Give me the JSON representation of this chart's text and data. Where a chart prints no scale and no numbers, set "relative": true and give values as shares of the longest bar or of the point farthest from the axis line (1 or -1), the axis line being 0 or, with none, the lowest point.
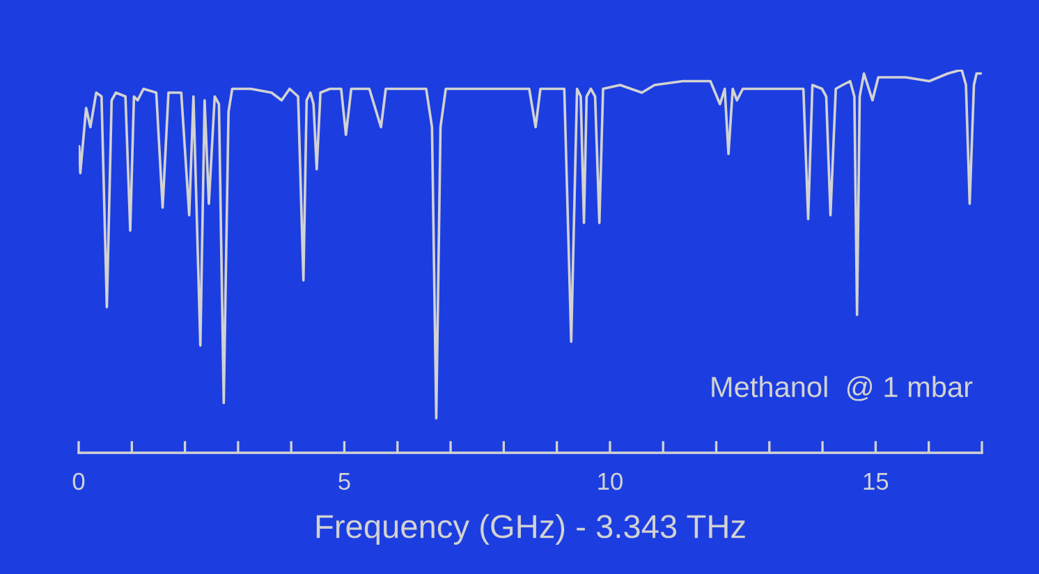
{
  "chart_data": {
    "type": "line",
    "relative": true,
    "xlabel": "Frequency (GHz) - 3.343 THz",
    "annotations": [
      "Methanol  @ 1 mbar"
    ],
    "x": [
      0.01,
      0.03,
      0.14,
      0.22,
      0.33,
      0.43,
      0.53,
      0.62,
      0.7,
      0.88,
      0.97,
      1.04,
      1.11,
      1.22,
      1.46,
      1.58,
      1.69,
      1.93,
      2.08,
      2.16,
      2.29,
      2.37,
      2.45,
      2.56,
      2.64,
      2.73,
      2.82,
      2.89,
      3.24,
      3.63,
      3.82,
      3.97,
      4.13,
      4.23,
      4.29,
      4.36,
      4.42,
      4.48,
      4.55,
      4.73,
      4.94,
      5.03,
      5.13,
      5.47,
      5.69,
      5.78,
      6.12,
      6.54,
      6.65,
      6.73,
      6.81,
      6.91,
      7.43,
      7.96,
      8.48,
      8.6,
      8.69,
      9.14,
      9.27,
      9.38,
      9.45,
      9.51,
      9.56,
      9.64,
      9.72,
      9.8,
      9.87,
      10.19,
      10.6,
      10.84,
      11.37,
      11.89,
      12.07,
      12.16,
      12.23,
      12.31,
      12.39,
      12.5,
      13.07,
      13.64,
      13.73,
      13.81,
      13.99,
      14.07,
      14.15,
      14.25,
      14.38,
      14.52,
      14.6,
      14.65,
      14.7,
      14.78,
      14.94,
      15.05,
      15.57,
      16.01,
      16.36,
      16.62,
      16.7,
      16.77,
      16.85,
      16.9,
      16.98
    ],
    "series": [
      {
        "color": "#d2d2d2",
        "values": [
          0.8,
          0.73,
          0.9,
          0.85,
          0.94,
          0.93,
          0.38,
          0.92,
          0.94,
          0.93,
          0.58,
          0.93,
          0.92,
          0.95,
          0.94,
          0.64,
          0.94,
          0.94,
          0.62,
          0.93,
          0.28,
          0.92,
          0.65,
          0.93,
          0.91,
          0.13,
          0.89,
          0.95,
          0.95,
          0.94,
          0.92,
          0.95,
          0.93,
          0.45,
          0.92,
          0.94,
          0.91,
          0.74,
          0.94,
          0.95,
          0.95,
          0.83,
          0.95,
          0.95,
          0.85,
          0.95,
          0.95,
          0.95,
          0.85,
          0.09,
          0.85,
          0.95,
          0.95,
          0.95,
          0.95,
          0.85,
          0.95,
          0.95,
          0.29,
          0.95,
          0.93,
          0.6,
          0.93,
          0.95,
          0.93,
          0.6,
          0.95,
          0.96,
          0.94,
          0.96,
          0.97,
          0.97,
          0.91,
          0.95,
          0.78,
          0.95,
          0.92,
          0.95,
          0.95,
          0.95,
          0.61,
          0.96,
          0.95,
          0.93,
          0.62,
          0.95,
          0.96,
          0.97,
          0.93,
          0.36,
          0.93,
          0.99,
          0.92,
          0.98,
          0.98,
          0.97,
          0.99,
          1.0,
          0.96,
          0.65,
          0.96,
          0.99,
          0.99
        ]
      }
    ],
    "xlim": [
      0,
      17
    ],
    "xticks": [
      0,
      {
        "value": 1,
        "label": null
      },
      {
        "value": 2,
        "label": null
      },
      {
        "value": 3,
        "label": null
      },
      {
        "value": 4,
        "label": null
      },
      5,
      {
        "value": 6,
        "label": null
      },
      {
        "value": 7,
        "label": null
      },
      {
        "value": 8,
        "label": null
      },
      {
        "value": 9,
        "label": null
      },
      10,
      {
        "value": 11,
        "label": null
      },
      {
        "value": 12,
        "label": null
      },
      {
        "value": 13,
        "label": null
      },
      {
        "value": 14,
        "label": null
      },
      15,
      {
        "value": 16,
        "label": null
      },
      {
        "value": 17,
        "label": null
      }
    ],
    "grid": false
  }
}
